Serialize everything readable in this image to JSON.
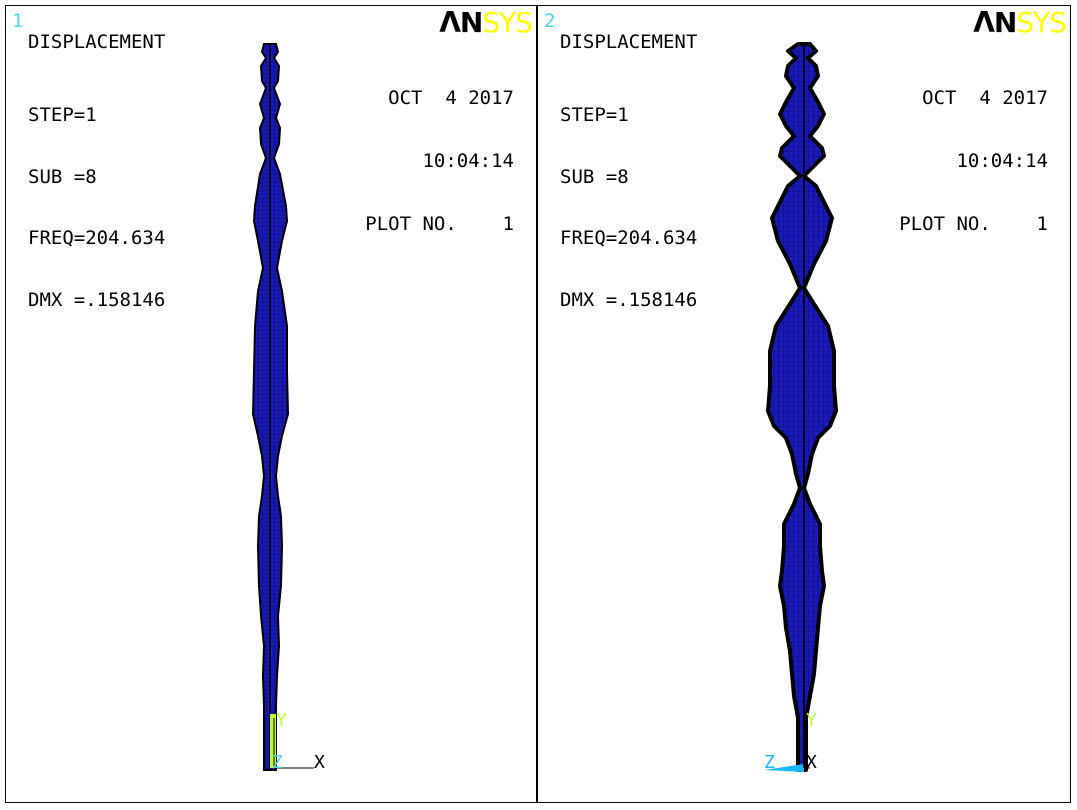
{
  "app": "ANSYS",
  "viewports": [
    {
      "window_number": "1",
      "logo_part1": "ΛN",
      "logo_part2": "SYS",
      "result_title": "DISPLACEMENT",
      "lines": [
        "STEP=1",
        "SUB =8",
        "FREQ=204.634",
        "DMX =.158146"
      ],
      "date": "OCT  4 2017",
      "time": "10:04:14",
      "plot_no": "PLOT NO.    1",
      "axis_labels": {
        "y": "Y",
        "z": "Z",
        "x": "X"
      }
    },
    {
      "window_number": "2",
      "logo_part1": "ΛN",
      "logo_part2": "SYS",
      "result_title": "DISPLACEMENT",
      "lines": [
        "STEP=1",
        "SUB =8",
        "FREQ=204.634",
        "DMX =.158146"
      ],
      "date": "OCT  4 2017",
      "time": "10:04:14",
      "plot_no": "PLOT NO.    1",
      "axis_labels": {
        "y": "Y",
        "z": "Z",
        "x": "X"
      }
    }
  ],
  "colors": {
    "mesh_fill": "#1a1ab8",
    "mesh_outline": "#000000",
    "window_number": "#4fd3e6",
    "logo_sys": "#ffff00",
    "triad_y": "#b8ff3a",
    "triad_z": "#18b8ff"
  },
  "icons": {
    "triad": "axis-triad-icon",
    "logo": "ansys-logo-icon"
  }
}
